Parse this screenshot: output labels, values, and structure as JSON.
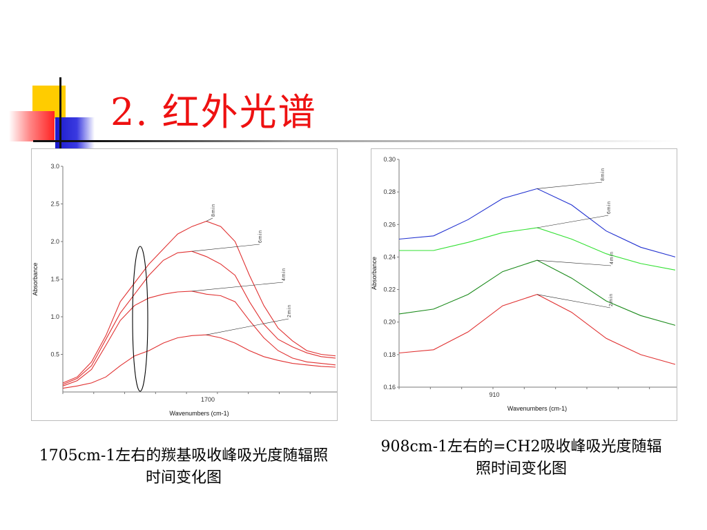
{
  "slide_title": "2.  红外光谱",
  "captions": [
    "1705cm-1左右的羰基吸收峰吸光度随辐照时间变化图",
    "908cm-1左右的=CH2吸收峰吸光度随辐照时间变化图"
  ],
  "chart_data": [
    {
      "type": "line",
      "xlabel": "Wavenumbers (cm-1)",
      "ylabel": "Absorbance",
      "x_ticks": [
        "1700"
      ],
      "ylim": [
        0,
        3.0
      ],
      "y_ticks": [
        "0.5",
        "1.0",
        "1.5",
        "2.0",
        "2.5",
        "3.0"
      ],
      "series": [
        {
          "name": "8min",
          "color": "#e03030",
          "values": [
            0.12,
            0.2,
            0.4,
            0.75,
            1.2,
            1.45,
            1.7,
            1.9,
            2.1,
            2.2,
            2.27,
            2.2,
            2.0,
            1.55,
            1.15,
            0.85,
            0.68,
            0.55,
            0.5,
            0.48
          ]
        },
        {
          "name": "6min",
          "color": "#e03030",
          "values": [
            0.1,
            0.18,
            0.35,
            0.7,
            1.05,
            1.3,
            1.55,
            1.75,
            1.85,
            1.87,
            1.8,
            1.7,
            1.55,
            1.2,
            0.9,
            0.7,
            0.6,
            0.52,
            0.47,
            0.45
          ]
        },
        {
          "name": "4min",
          "color": "#e03030",
          "values": [
            0.08,
            0.15,
            0.3,
            0.62,
            0.95,
            1.15,
            1.25,
            1.3,
            1.33,
            1.34,
            1.3,
            1.28,
            1.2,
            0.95,
            0.72,
            0.55,
            0.45,
            0.4,
            0.38,
            0.36
          ]
        },
        {
          "name": "2min",
          "color": "#e03030",
          "values": [
            0.05,
            0.08,
            0.12,
            0.2,
            0.35,
            0.48,
            0.55,
            0.65,
            0.72,
            0.75,
            0.76,
            0.72,
            0.65,
            0.55,
            0.47,
            0.42,
            0.38,
            0.36,
            0.34,
            0.33
          ]
        }
      ],
      "annotation": "ellipse around the 1705 cm-1 shoulder"
    },
    {
      "type": "line",
      "xlabel": "Wavenumbers (cm-1)",
      "ylabel": "Absorbance",
      "x_ticks": [
        "910"
      ],
      "ylim": [
        0.16,
        0.3
      ],
      "y_ticks": [
        "0.16",
        "0.18",
        "0.20",
        "0.22",
        "0.24",
        "0.26",
        "0.28",
        "0.30"
      ],
      "series": [
        {
          "name": "8min",
          "color": "#2030d0",
          "values": [
            0.251,
            0.253,
            0.263,
            0.276,
            0.282,
            0.272,
            0.256,
            0.246,
            0.24
          ]
        },
        {
          "name": "6min",
          "color": "#30e030",
          "values": [
            0.244,
            0.244,
            0.249,
            0.255,
            0.258,
            0.251,
            0.242,
            0.236,
            0.232
          ]
        },
        {
          "name": "4min",
          "color": "#1a8a1a",
          "values": [
            0.205,
            0.208,
            0.217,
            0.231,
            0.238,
            0.227,
            0.213,
            0.204,
            0.198
          ]
        },
        {
          "name": "2min",
          "color": "#e03030",
          "values": [
            0.181,
            0.183,
            0.194,
            0.21,
            0.217,
            0.206,
            0.19,
            0.18,
            0.174
          ]
        }
      ]
    }
  ]
}
